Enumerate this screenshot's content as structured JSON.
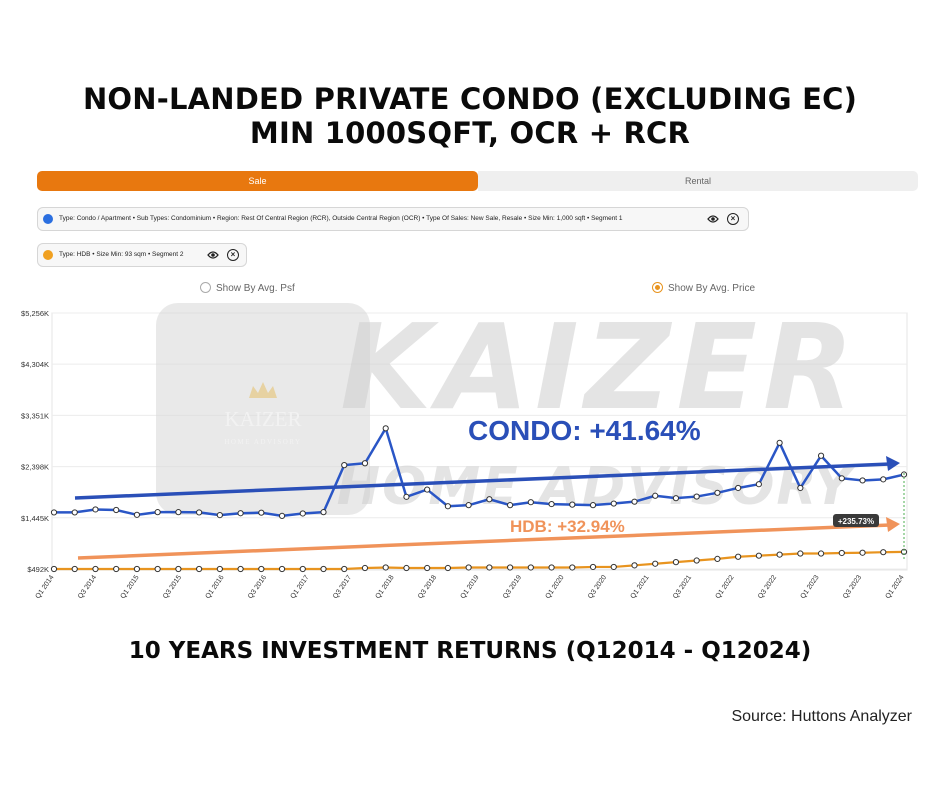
{
  "header": {
    "title_line1": "NON-LANDED PRIVATE CONDO (EXCLUDING EC)",
    "title_line2": "MIN 1000SQFT, OCR + RCR"
  },
  "tabs": [
    {
      "label": "Sale",
      "active": true
    },
    {
      "label": "Rental",
      "active": false
    }
  ],
  "segments": [
    {
      "color": "#2b6fe0",
      "text": "Type: Condo / Apartment • Sub Types: Condominium • Region: Rest Of Central Region (RCR), Outside Central Region (OCR) • Type Of Sales: New Sale, Resale • Size Min: 1,000 sqft • Segment 1"
    },
    {
      "color": "#f0a020",
      "text": "Type: HDB • Size Min: 93 sqm • Segment 2"
    }
  ],
  "toggle": {
    "psf_label": "Show By Avg. Psf",
    "price_label": "Show By Avg. Price",
    "selected": "price"
  },
  "watermark": {
    "brand": "KAIZER",
    "tagline": "HOME ADVISORY",
    "logo_text": "KAIZER",
    "logo_sub": "HOME ADVISORY"
  },
  "chart_data": {
    "type": "line",
    "x_ticks": [
      "Q1 2014",
      "Q3 2014",
      "Q1 2015",
      "Q3 2015",
      "Q1 2016",
      "Q3 2016",
      "Q1 2017",
      "Q3 2017",
      "Q1 2018",
      "Q3 2018",
      "Q1 2019",
      "Q3 2019",
      "Q1 2020",
      "Q3 2020",
      "Q1 2021",
      "Q3 2021",
      "Q1 2022",
      "Q3 2022",
      "Q1 2023",
      "Q3 2023",
      "Q1 2024"
    ],
    "y_ticks": [
      "$5,256K",
      "$4,304K",
      "$3,351K",
      "$2,398K",
      "$1,445K",
      "$492K"
    ],
    "y_tick_values": [
      5256,
      4304,
      3351,
      2398,
      1445,
      492
    ],
    "ylim": [
      492,
      5256
    ],
    "series": [
      {
        "name": "Segment 1",
        "color": "#2a56c6",
        "values": [
          1545,
          1545,
          1600,
          1590,
          1500,
          1550,
          1550,
          1545,
          1495,
          1530,
          1540,
          1480,
          1525,
          1550,
          2425,
          2460,
          3110,
          1835,
          1970,
          1660,
          1680,
          1790,
          1680,
          1735,
          1700,
          1690,
          1680,
          1710,
          1745,
          1855,
          1810,
          1840,
          1910,
          2000,
          2070,
          2840,
          2000,
          2600,
          2180,
          2140,
          2160,
          2250
        ]
      },
      {
        "name": "Segment 2",
        "color": "#e8941f",
        "values": [
          492,
          492,
          492,
          492,
          492,
          492,
          492,
          492,
          492,
          492,
          492,
          492,
          492,
          492,
          492,
          510,
          520,
          510,
          510,
          510,
          520,
          520,
          520,
          520,
          520,
          520,
          530,
          530,
          560,
          590,
          620,
          650,
          680,
          720,
          740,
          760,
          780,
          780,
          790,
          795,
          805,
          810
        ]
      }
    ],
    "annotations": [
      {
        "text": "CONDO: +41.64%",
        "color": "#2a4fb8"
      },
      {
        "text": "HDB: +32.94%",
        "color": "#f0935a"
      },
      {
        "text": "+235.73%",
        "color": "#ffffff"
      }
    ]
  },
  "footer": {
    "subtitle": "10 YEARS INVESTMENT RETURNS (Q12014 - Q12024)",
    "source": "Source: Huttons Analyzer"
  }
}
